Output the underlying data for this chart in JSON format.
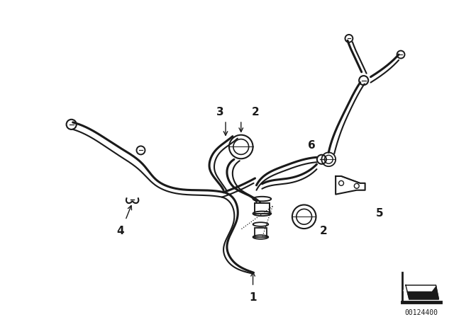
{
  "bg_color": "#ffffff",
  "line_color": "#1a1a1a",
  "label_color": "#1a1a1a",
  "fig_width": 6.4,
  "fig_height": 4.48,
  "dpi": 100,
  "part_number": "00124400"
}
